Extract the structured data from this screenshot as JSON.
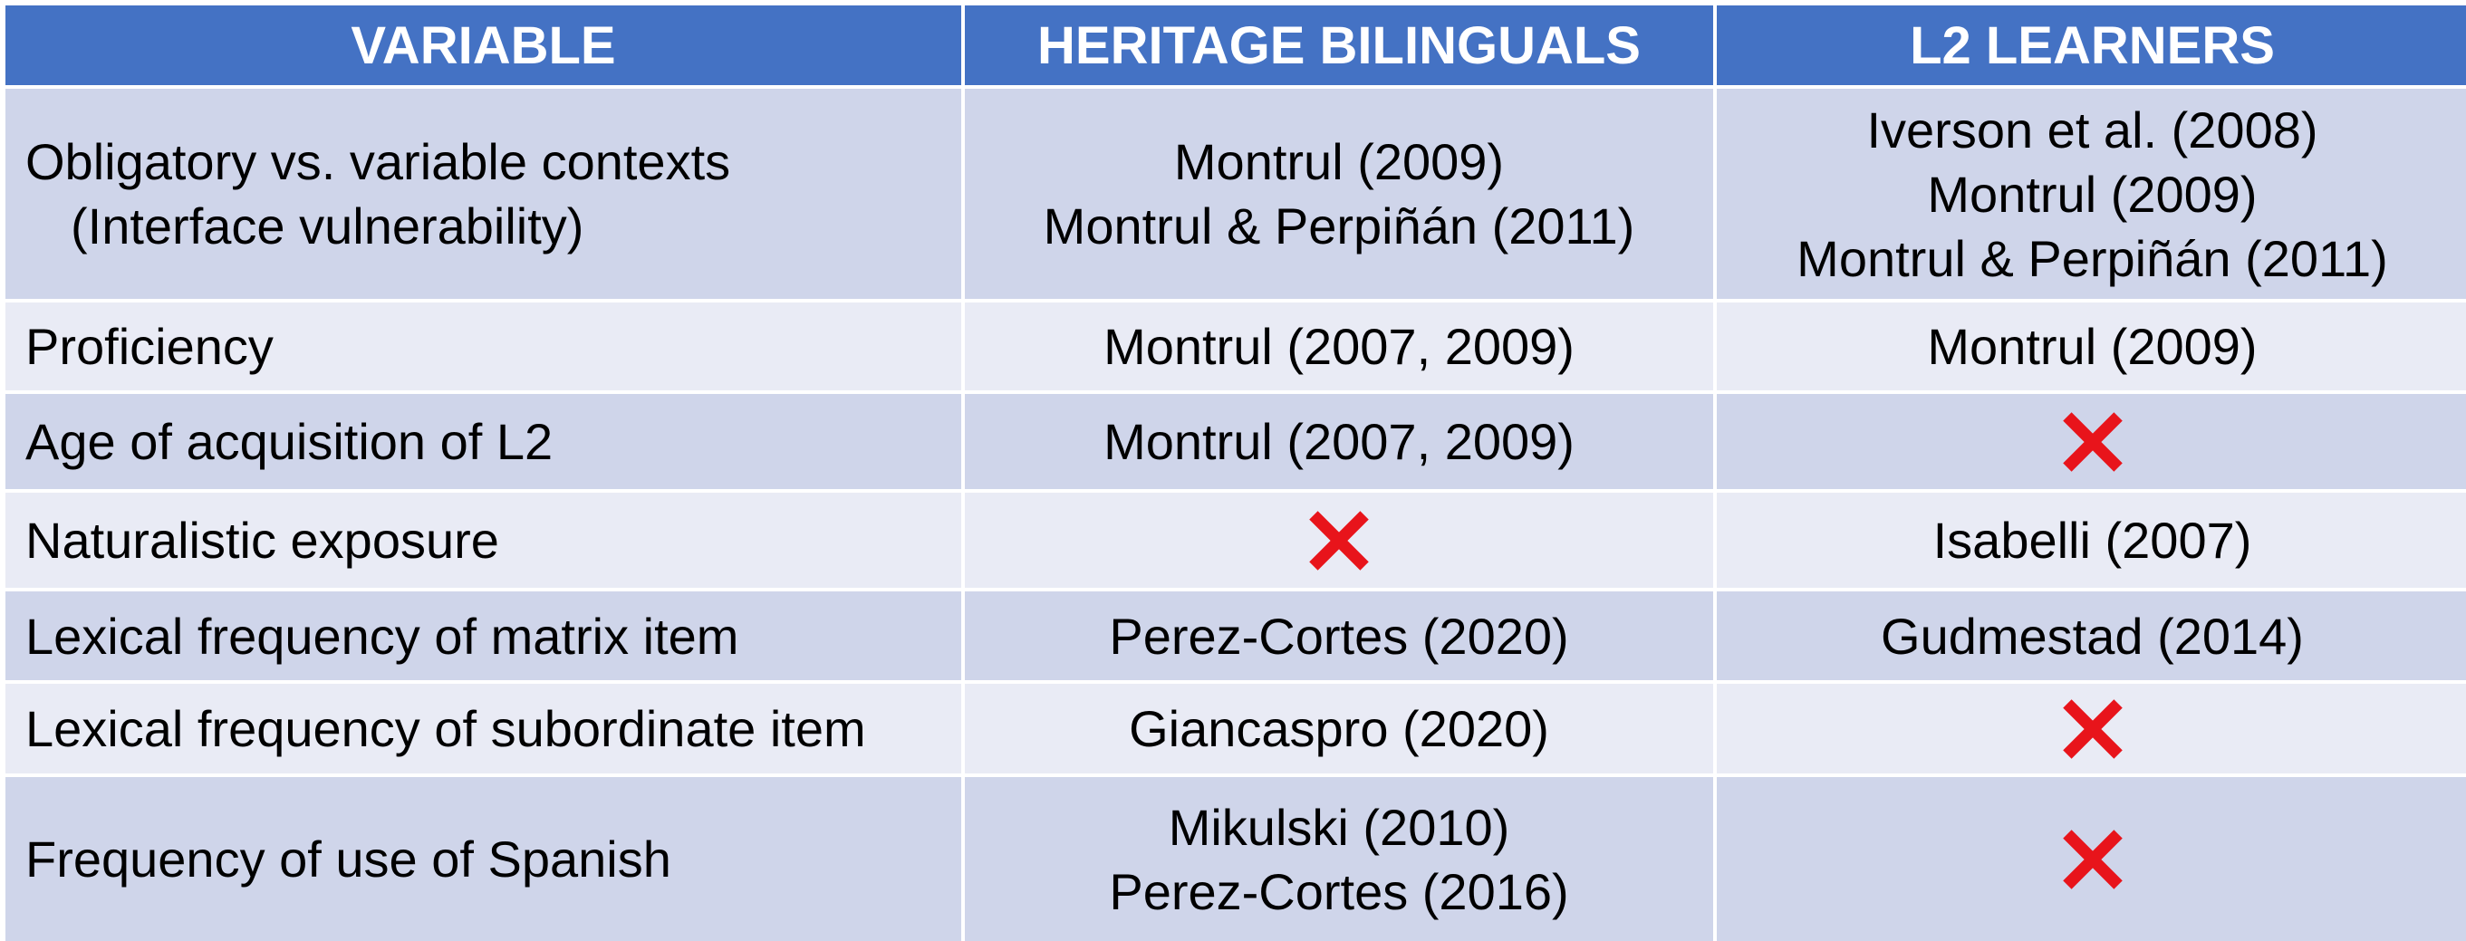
{
  "headers": {
    "variable": "VARIABLE",
    "heritage": "HERITAGE BILINGUALS",
    "l2": "L2 LEARNERS"
  },
  "rows": [
    {
      "variable": [
        "Obligatory vs. variable contexts",
        "(Interface vulnerability)"
      ],
      "heritage": [
        "Montrul (2009)",
        "Montrul & Perpiñán (2011)"
      ],
      "l2": [
        "Iverson et al. (2008)",
        "Montrul (2009)",
        "Montrul & Perpiñán (2011)"
      ]
    },
    {
      "variable": [
        "Proficiency"
      ],
      "heritage": [
        "Montrul (2007, 2009)"
      ],
      "l2": [
        "Montrul (2009)"
      ]
    },
    {
      "variable": [
        "Age of acquisition of L2"
      ],
      "heritage": [
        "Montrul (2007, 2009)"
      ],
      "l2_icon": "red-x-icon"
    },
    {
      "variable": [
        "Naturalistic exposure"
      ],
      "heritage_icon": "red-x-icon",
      "l2": [
        "Isabelli (2007)"
      ]
    },
    {
      "variable": [
        "Lexical frequency of matrix item"
      ],
      "heritage": [
        "Perez-Cortes (2020)"
      ],
      "l2": [
        "Gudmestad (2014)"
      ]
    },
    {
      "variable": [
        "Lexical frequency of subordinate item"
      ],
      "heritage": [
        "Giancaspro (2020)"
      ],
      "l2_icon": "red-x-icon"
    },
    {
      "variable": [
        "Frequency of use of Spanish"
      ],
      "heritage": [
        "Mikulski (2010)",
        "Perez-Cortes (2016)"
      ],
      "l2_icon": "red-x-icon"
    }
  ],
  "colors": {
    "header_bg": "#4472c4",
    "header_text": "#ffffff",
    "row_odd": "#cfd5ea",
    "row_even": "#e9ebf5",
    "x_mark": "#e8141b"
  }
}
